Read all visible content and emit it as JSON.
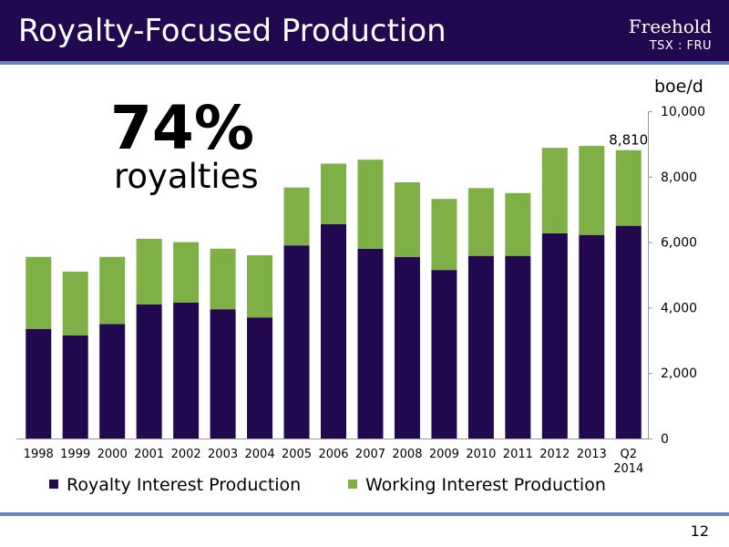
{
  "slide": {
    "title": "Royalty-Focused Production",
    "logo_name": "Freehold",
    "logo_ticker": "TSX : FRU",
    "highlight_value": "74%",
    "highlight_label": "royalties",
    "page_number": "12"
  },
  "colors": {
    "header_bg": "#22084f",
    "rule": "#6a84c2",
    "royalty": "#22084f",
    "working": "#7fb046"
  },
  "chart_data": {
    "type": "bar",
    "stacked": true,
    "unit_label": "boe/d",
    "categories": [
      "1998",
      "1999",
      "2000",
      "2001",
      "2002",
      "2003",
      "2004",
      "2005",
      "2006",
      "2007",
      "2008",
      "2009",
      "2010",
      "2011",
      "2012",
      "2013",
      "Q2 2014"
    ],
    "series": [
      {
        "name": "Royalty Interest Production",
        "color": "#22084f",
        "values": [
          3350,
          3150,
          3500,
          4100,
          4150,
          3950,
          3700,
          5900,
          6550,
          5800,
          5550,
          5150,
          5580,
          5580,
          6270,
          6220,
          6500
        ]
      },
      {
        "name": "Working Interest Production",
        "color": "#7fb046",
        "values": [
          2200,
          1950,
          2050,
          2000,
          1850,
          1850,
          1900,
          1770,
          1850,
          2720,
          2280,
          2170,
          2070,
          1920,
          2610,
          2720,
          2310
        ]
      }
    ],
    "data_labels": [
      {
        "category": "Q2 2014",
        "text": "8,810"
      }
    ],
    "ylim": [
      0,
      10000
    ],
    "yticks": [
      "0",
      "2,000",
      "4,000",
      "6,000",
      "8,000",
      "10,000"
    ],
    "y_axis_side": "right",
    "grid": false,
    "legend": "bottom"
  }
}
